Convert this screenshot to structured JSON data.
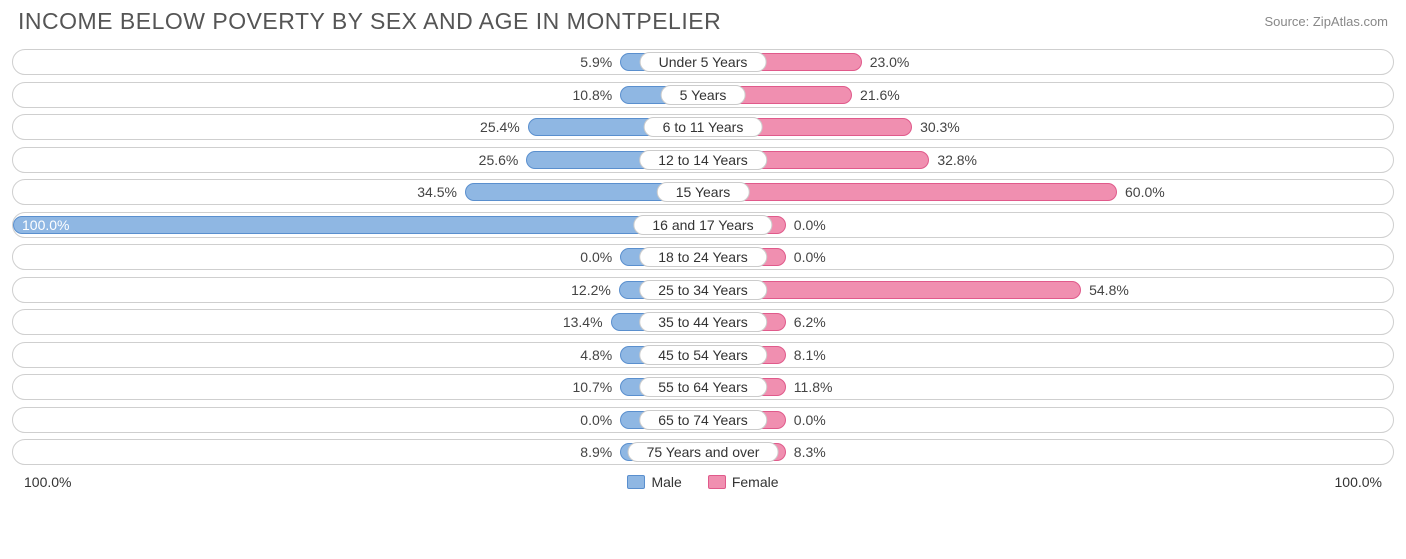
{
  "title": "INCOME BELOW POVERTY BY SEX AND AGE IN MONTPELIER",
  "source": "Source: ZipAtlas.com",
  "axis": {
    "left_max": "100.0%",
    "right_max": "100.0%"
  },
  "legend": {
    "male": {
      "label": "Male",
      "fill": "#8fb7e3",
      "border": "#5a8fce"
    },
    "female": {
      "label": "Female",
      "fill": "#f08fb0",
      "border": "#e05a8b"
    }
  },
  "chart": {
    "type": "diverging-bar",
    "bar_min_pct_width": 12,
    "male_fill": "#8fb7e3",
    "male_border": "#5a8fce",
    "female_fill": "#f08fb0",
    "female_border": "#e05a8b",
    "track_border": "#cfcfcf",
    "label_color": "#444444",
    "rows": [
      {
        "category": "Under 5 Years",
        "male": 5.9,
        "female": 23.0
      },
      {
        "category": "5 Years",
        "male": 10.8,
        "female": 21.6
      },
      {
        "category": "6 to 11 Years",
        "male": 25.4,
        "female": 30.3
      },
      {
        "category": "12 to 14 Years",
        "male": 25.6,
        "female": 32.8
      },
      {
        "category": "15 Years",
        "male": 34.5,
        "female": 60.0
      },
      {
        "category": "16 and 17 Years",
        "male": 100.0,
        "female": 0.0
      },
      {
        "category": "18 to 24 Years",
        "male": 0.0,
        "female": 0.0
      },
      {
        "category": "25 to 34 Years",
        "male": 12.2,
        "female": 54.8
      },
      {
        "category": "35 to 44 Years",
        "male": 13.4,
        "female": 6.2
      },
      {
        "category": "45 to 54 Years",
        "male": 4.8,
        "female": 8.1
      },
      {
        "category": "55 to 64 Years",
        "male": 10.7,
        "female": 11.8
      },
      {
        "category": "65 to 74 Years",
        "male": 0.0,
        "female": 0.0
      },
      {
        "category": "75 Years and over",
        "male": 8.9,
        "female": 8.3
      }
    ]
  }
}
